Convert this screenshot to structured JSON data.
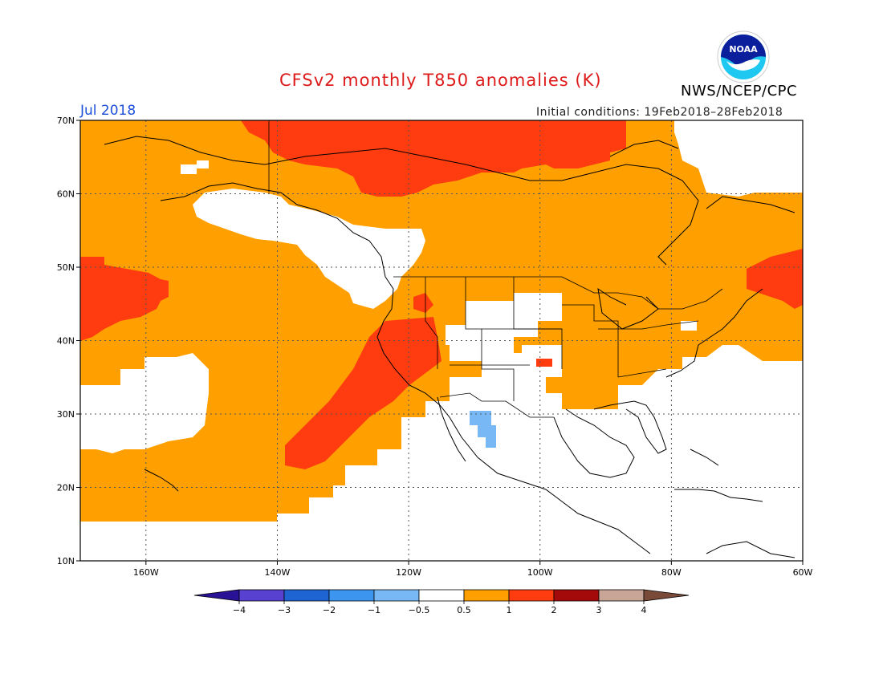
{
  "header": {
    "title": "CFSv2 monthly T850 anomalies (K)",
    "period": "Jul 2018",
    "initial_conditions": "Initial conditions: 19Feb2018–28Feb2018",
    "agency": "NWS/NCEP/CPC",
    "logo_text": "NOAA"
  },
  "map": {
    "lat_labels": [
      "70N",
      "60N",
      "50N",
      "40N",
      "30N",
      "20N",
      "10N"
    ],
    "lon_labels": [
      "160W",
      "140W",
      "120W",
      "100W",
      "80W",
      "60W"
    ],
    "lat_range": [
      10,
      70
    ],
    "lon_range": [
      -170,
      -60
    ],
    "graticule": "dotted"
  },
  "colorbar": {
    "labels": [
      "−4",
      "−3",
      "−2",
      "−1",
      "−0.5",
      "0.5",
      "1",
      "2",
      "3",
      "4"
    ],
    "colors": [
      "#2a1296",
      "#5840d0",
      "#1e64d2",
      "#3c96f0",
      "#78b9f5",
      "#ffffff",
      "#ffa000",
      "#ff3c0f",
      "#a50a0a",
      "#c8a596",
      "#7a4a38"
    ],
    "unit": "K"
  },
  "colors": {
    "warm_05_1": "#ffa000",
    "warm_1_2": "#ff3c0f",
    "cool_minus05_minus1": "#78b9f5",
    "neutral": "#ffffff"
  }
}
